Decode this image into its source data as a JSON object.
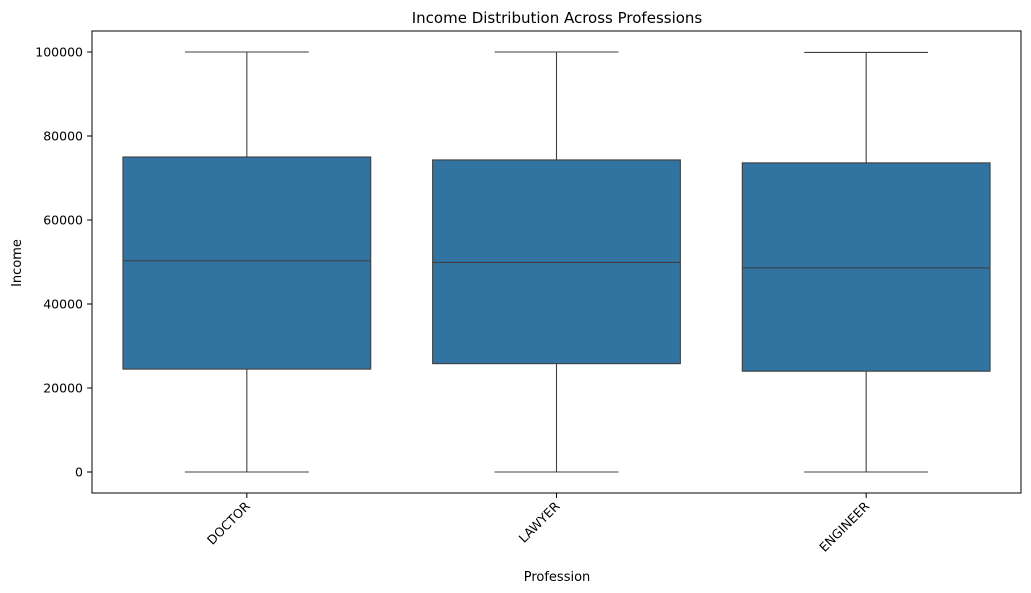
{
  "chart_data": {
    "type": "box",
    "title": "Income Distribution Across Professions",
    "xlabel": "Profession",
    "ylabel": "Income",
    "categories": [
      "DOCTOR",
      "LAWYER",
      "ENGINEER"
    ],
    "boxes": [
      {
        "category": "DOCTOR",
        "whisker_low": 0,
        "q1": 24500,
        "median": 50300,
        "q3": 75000,
        "whisker_high": 100000
      },
      {
        "category": "LAWYER",
        "whisker_low": 0,
        "q1": 25800,
        "median": 49900,
        "q3": 74300,
        "whisker_high": 100000
      },
      {
        "category": "ENGINEER",
        "whisker_low": 0,
        "q1": 24000,
        "median": 48600,
        "q3": 73600,
        "whisker_high": 99900
      }
    ],
    "ylim": [
      -5000,
      105000
    ],
    "yticks": [
      0,
      20000,
      40000,
      60000,
      80000,
      100000
    ],
    "ytick_labels": [
      "0",
      "20000",
      "40000",
      "60000",
      "80000",
      "100000"
    ],
    "xtick_rotation_deg": -45,
    "grid": false,
    "colors": {
      "box_fill": "#3274a1",
      "line": "#3f3f3f",
      "axis": "#000000"
    }
  }
}
